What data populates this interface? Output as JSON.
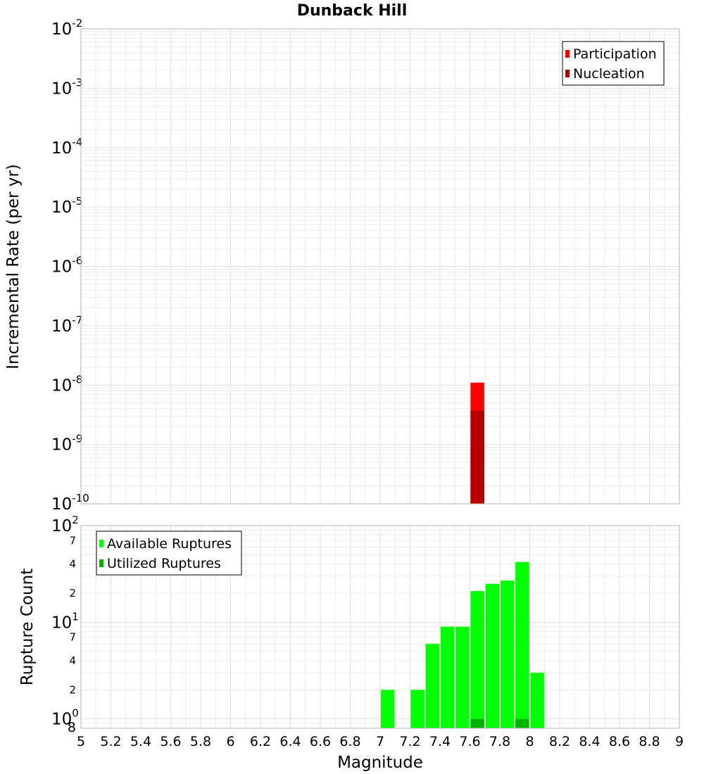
{
  "chart_data": [
    {
      "type": "bar",
      "title": "Dunback Hill",
      "xlabel": "Magnitude",
      "ylabel": "Incremental Rate (per yr)",
      "yscale": "log",
      "xlim": [
        5,
        9
      ],
      "ylim": [
        1e-10,
        0.01
      ],
      "y_ticks": [
        {
          "base": "10",
          "exp": "-10"
        },
        {
          "base": "10",
          "exp": "-9"
        },
        {
          "base": "10",
          "exp": "-8"
        },
        {
          "base": "10",
          "exp": "-7"
        },
        {
          "base": "10",
          "exp": "-6"
        },
        {
          "base": "10",
          "exp": "-5"
        },
        {
          "base": "10",
          "exp": "-4"
        },
        {
          "base": "10",
          "exp": "-3"
        },
        {
          "base": "10",
          "exp": "-2"
        }
      ],
      "legend_position": "top-right",
      "grid": true,
      "series": [
        {
          "name": "Participation",
          "color": "#ff0000",
          "x": [
            7.65
          ],
          "values": [
            1.1e-08
          ]
        },
        {
          "name": "Nucleation",
          "color": "#b40000",
          "x": [
            7.65
          ],
          "values": [
            3.7e-09
          ]
        }
      ]
    },
    {
      "type": "bar",
      "title": "",
      "xlabel": "Magnitude",
      "ylabel": "Rupture Count",
      "yscale": "log",
      "xlim": [
        5,
        9
      ],
      "ylim": [
        0.8,
        100
      ],
      "x_ticks": [
        "5",
        "5.2",
        "5.4",
        "5.6",
        "5.8",
        "6",
        "6.2",
        "6.4",
        "6.6",
        "6.8",
        "7",
        "7.2",
        "7.4",
        "7.6",
        "7.8",
        "8",
        "8.2",
        "8.4",
        "8.6",
        "8.8",
        "9"
      ],
      "y_major_ticks": [
        {
          "value": 1,
          "base": "10",
          "exp": "0"
        },
        {
          "value": 10,
          "base": "10",
          "exp": "1"
        },
        {
          "value": 100,
          "base": "10",
          "exp": "2"
        }
      ],
      "y_minor_ticks": [
        {
          "value": 0.8,
          "label": "8"
        },
        {
          "value": 2,
          "label": "2"
        },
        {
          "value": 4,
          "label": "4"
        },
        {
          "value": 7,
          "label": "7"
        },
        {
          "value": 20,
          "label": "2"
        },
        {
          "value": 40,
          "label": "4"
        },
        {
          "value": 70,
          "label": "7"
        }
      ],
      "legend_position": "top-left",
      "grid": true,
      "series": [
        {
          "name": "Available Ruptures",
          "color": "#00ff00",
          "x": [
            7.05,
            7.25,
            7.35,
            7.45,
            7.55,
            7.65,
            7.75,
            7.85,
            7.95,
            8.05
          ],
          "values": [
            2,
            2,
            6,
            9,
            9,
            21,
            25,
            27,
            42,
            3
          ]
        },
        {
          "name": "Utilized Ruptures",
          "color": "#00b400",
          "x": [
            7.65,
            7.95
          ],
          "values": [
            1,
            1
          ]
        }
      ]
    }
  ]
}
